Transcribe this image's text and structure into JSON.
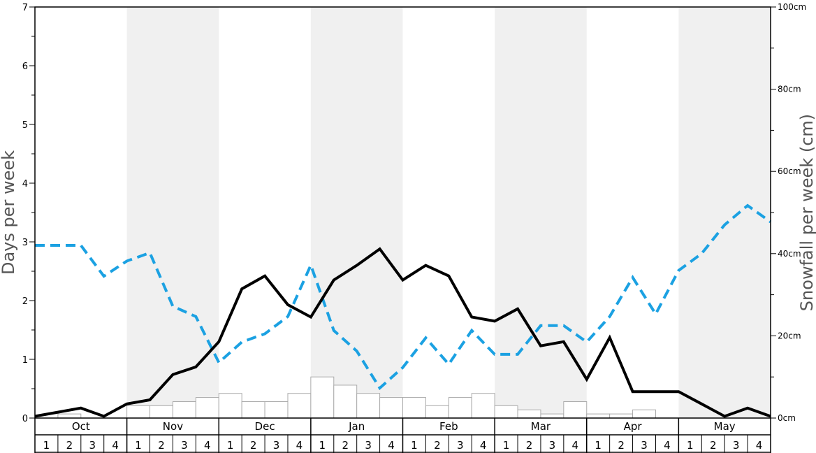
{
  "chart_data": {
    "type": "line",
    "title": "",
    "ylabel_left": "Days per week",
    "ylabel_right": "Snowfall per week (cm)",
    "ylim_left": [
      0,
      7
    ],
    "ylim_right": [
      0,
      100
    ],
    "left_ticks": [
      "0",
      "1",
      "2",
      "3",
      "4",
      "5",
      "6",
      "7"
    ],
    "right_ticks": [
      "0cm",
      "20cm",
      "40cm",
      "60cm",
      "80cm",
      "100cm"
    ],
    "right_tick_values": [
      0,
      20,
      40,
      60,
      80,
      100
    ],
    "months": [
      "Oct",
      "Nov",
      "Dec",
      "Jan",
      "Feb",
      "Mar",
      "Apr",
      "May"
    ],
    "weeks": [
      "1",
      "2",
      "3",
      "4"
    ],
    "shaded_months": [
      "Nov",
      "Jan",
      "Mar",
      "May"
    ],
    "colors": {
      "shade": "#f0f0f0",
      "bar_fill": "#ffffff",
      "bar_stroke": "#aaaaaa",
      "solid_line": "#000000",
      "dashed_line": "#1ba1e2"
    },
    "series": [
      {
        "style": "solid",
        "axis": "left",
        "values": [
          0.03,
          0.1,
          0.17,
          0.03,
          0.24,
          0.31,
          0.74,
          0.87,
          1.3,
          2.2,
          2.42,
          1.93,
          1.72,
          2.35,
          2.6,
          2.88,
          2.35,
          2.6,
          2.42,
          1.72,
          1.65,
          1.86,
          1.23,
          1.3,
          0.66,
          1.37,
          0.45,
          0.45,
          0.45,
          0.24,
          0.03,
          0.17,
          0.03
        ]
      },
      {
        "style": "dashed",
        "axis": "right",
        "values": [
          42,
          42,
          42,
          34.5,
          38.2,
          40.2,
          27.2,
          24.7,
          13.5,
          18.5,
          20.5,
          24.7,
          37.2,
          21.3,
          16.3,
          7.3,
          12.3,
          19.5,
          13.1,
          21.3,
          15.5,
          15.5,
          22.5,
          22.5,
          18.5,
          24.7,
          34.2,
          25.3,
          35.9,
          40,
          47,
          51.7,
          47.7
        ]
      },
      {
        "style": "bars",
        "axis": "right",
        "values": [
          0,
          1,
          0,
          0,
          3,
          3,
          4,
          5,
          6,
          4,
          4,
          6,
          10,
          8,
          6,
          5,
          5,
          3,
          5,
          6,
          3,
          2,
          1,
          4,
          1,
          1,
          2,
          0,
          0,
          0,
          0,
          0
        ]
      }
    ]
  }
}
